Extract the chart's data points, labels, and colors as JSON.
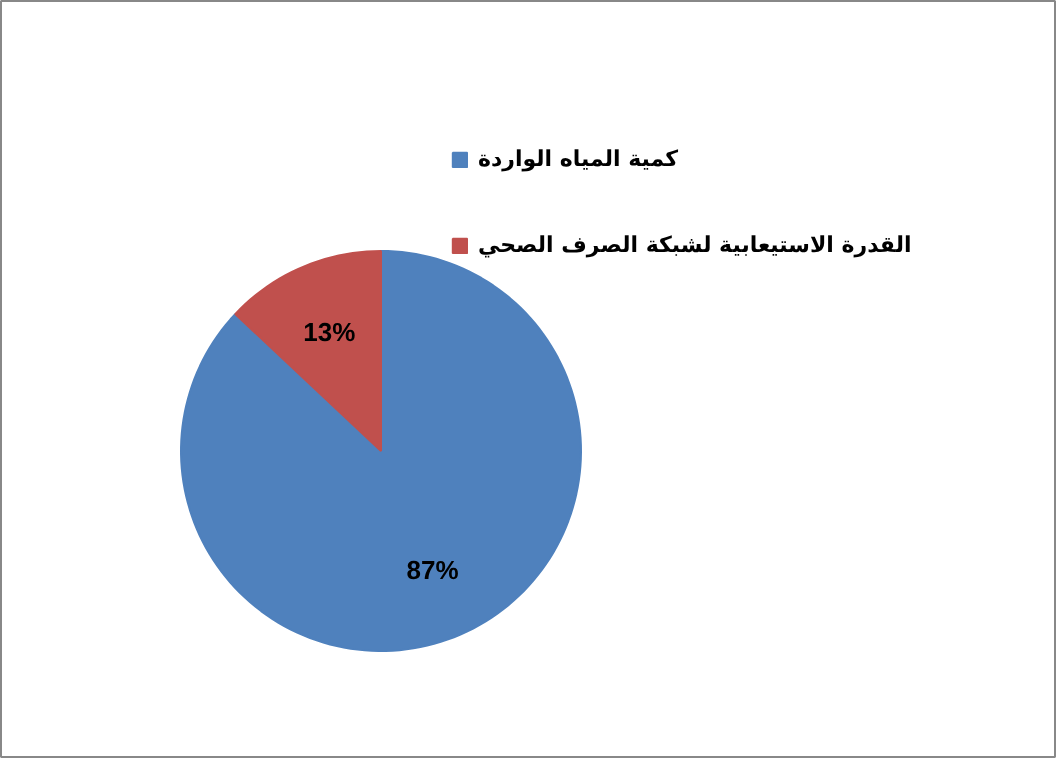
{
  "chart_data": {
    "type": "pie",
    "categories": [
      "كمية المياه الواردة",
      "القدرة الاستيعابية لشبكة الصرف الصحي"
    ],
    "values": [
      87,
      13
    ],
    "colors": [
      "#4f81bd",
      "#c0504d"
    ],
    "value_labels": [
      "87%",
      "13%"
    ],
    "legend": "right"
  }
}
